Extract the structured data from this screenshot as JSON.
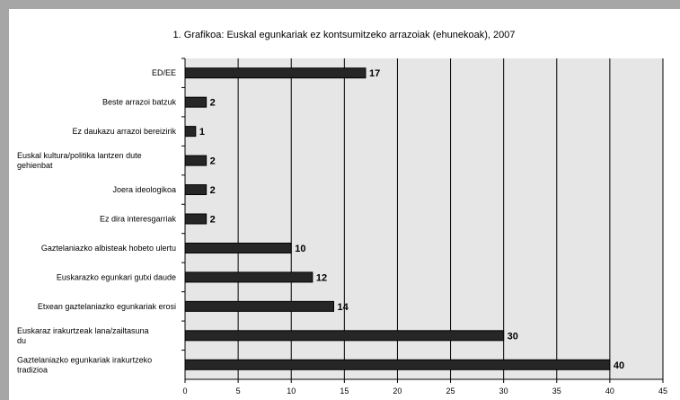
{
  "chart_data": {
    "type": "bar",
    "orientation": "horizontal",
    "title": "1. Grafikoa: Euskal egunkariak ez kontsumitzeko arrazoiak (ehunekoak), 2007",
    "categories": [
      "ED/EE",
      "Beste arrazoi batzuk",
      "Ez daukazu arrazoi bereizirik",
      "Euskal kultura/politika lantzen dute gehienbat",
      "Joera ideologikoa",
      "Ez dira interesgarriak",
      "Gaztelaniazko albisteak hobeto ulertu",
      "Euskarazko egunkari gutxi daude",
      "Etxean gaztelaniazko egunkariak erosi",
      "Euskaraz irakurtzeak lana/zailtasuna du",
      "Gaztelaniazko egunkariak irakurtzeko tradizioa"
    ],
    "category_lines": [
      [
        "ED/EE"
      ],
      [
        "Beste arrazoi batzuk"
      ],
      [
        "Ez daukazu arrazoi bereizirik"
      ],
      [
        "Euskal kultura/politika lantzen dute",
        "gehienbat"
      ],
      [
        "Joera ideologikoa"
      ],
      [
        "Ez dira interesgarriak"
      ],
      [
        "Gaztelaniazko albisteak hobeto ulertu"
      ],
      [
        "Euskarazko egunkari gutxi daude"
      ],
      [
        "Etxean gaztelaniazko egunkariak erosi"
      ],
      [
        "Euskaraz irakurtzeak lana/zailtasuna",
        "du"
      ],
      [
        "Gaztelaniazko egunkariak irakurtzeko",
        "tradizioa"
      ]
    ],
    "values": [
      17,
      2,
      1,
      2,
      2,
      2,
      10,
      12,
      14,
      30,
      40
    ],
    "xlim": [
      0,
      45
    ],
    "xticks": [
      0,
      5,
      10,
      15,
      20,
      25,
      30,
      35,
      40,
      45
    ],
    "grid": true,
    "legend": "none",
    "colors": {
      "bar": "#262626",
      "plot_background": "#e6e6e6",
      "gridline": "#000000",
      "outer_background": "#a6a6a6"
    }
  }
}
